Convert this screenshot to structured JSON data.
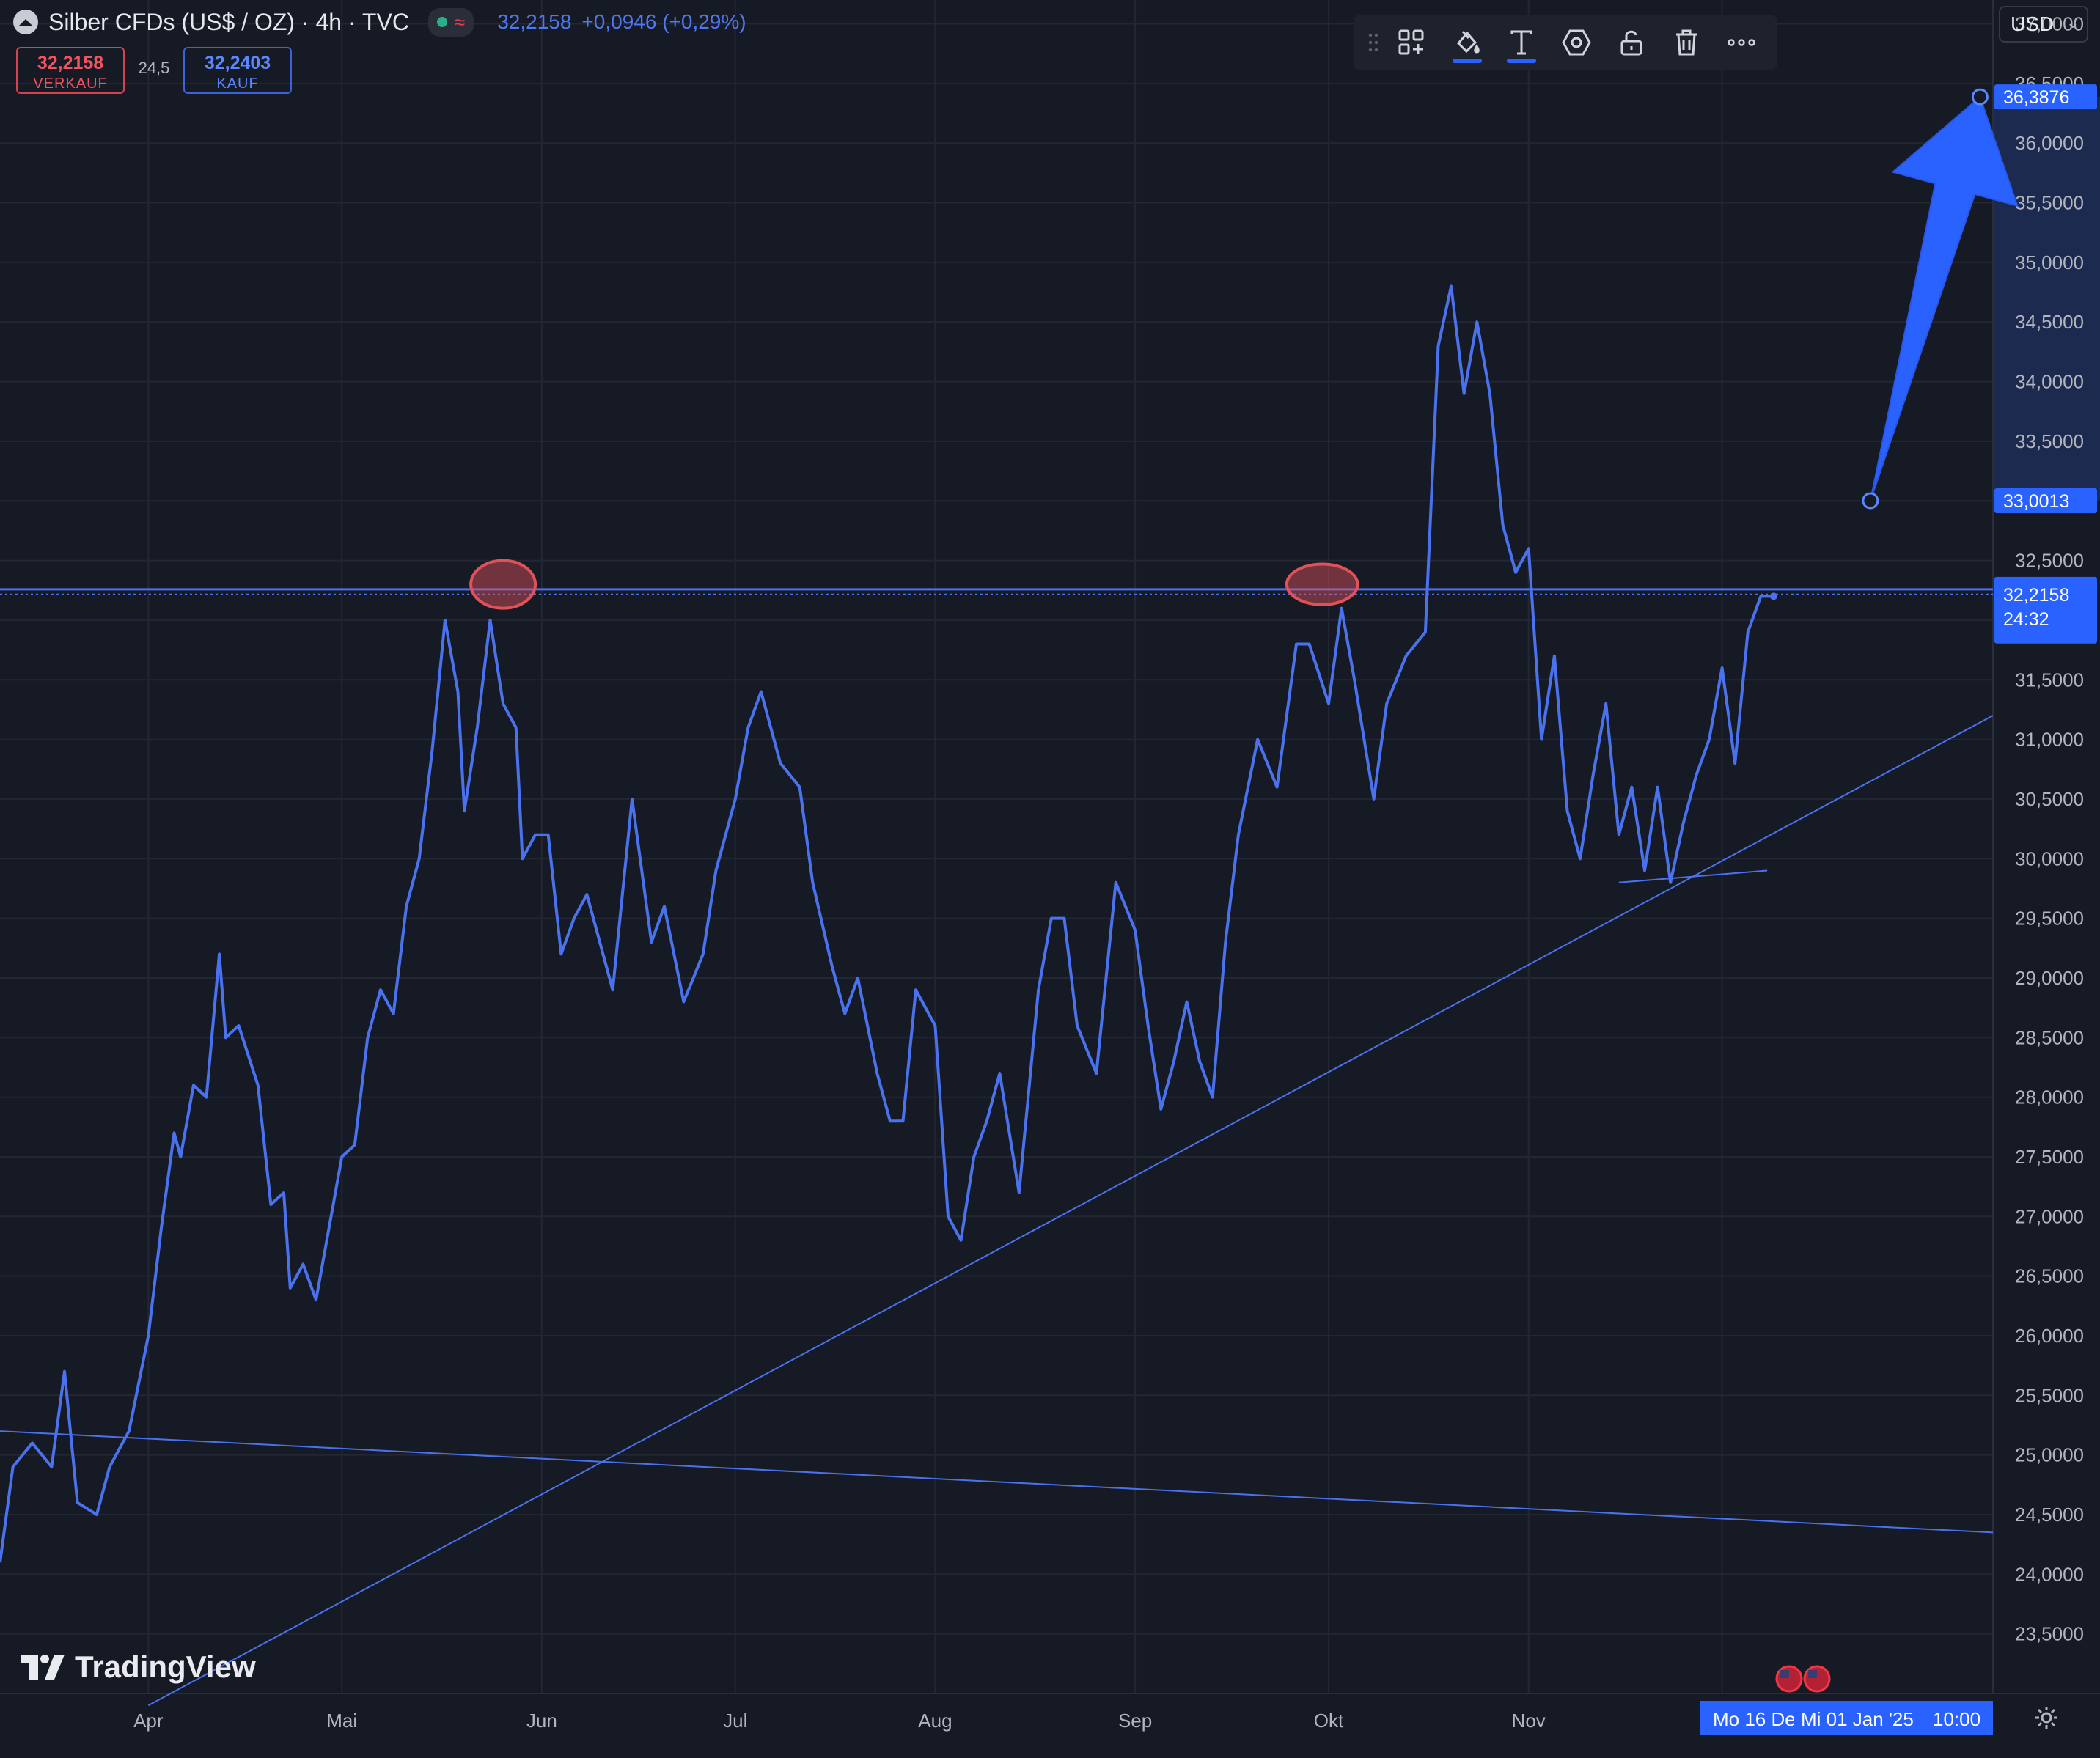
{
  "header": {
    "title": "Silber CFDs (US$ / OZ) · 4h · TVC",
    "status_icon": "wave-icon",
    "last_price": "32,2158",
    "change": "+0,0946 (+0,29%)"
  },
  "quote": {
    "sell_price": "32,2158",
    "sell_label": "VERKAUF",
    "spread": "24,5",
    "buy_price": "32,2403",
    "buy_label": "KAUF"
  },
  "toolbar": {
    "items": [
      "drag-handle-icon",
      "add-object-icon",
      "fill-paint-icon",
      "text-icon",
      "settings-hexagon-icon",
      "unlock-icon",
      "trash-icon",
      "more-icon"
    ]
  },
  "currency": {
    "selected": "USD"
  },
  "watermark": {
    "brand": "TradingView"
  },
  "footer": {
    "range_start": "Mo 16 Dez",
    "range_end": "Mi 01 Jan '25",
    "range_time": "10:00"
  },
  "colors": {
    "background": "#161a25",
    "line": "#4a72ee",
    "marker_fill": "#2962ff",
    "highlight": "#e0525a",
    "grid": "#232733"
  },
  "chart_data": {
    "type": "line",
    "title": "",
    "xlabel": "",
    "ylabel": "",
    "grid": true,
    "ylim": [
      23.0,
      37.2
    ],
    "x_range": [
      "2024-03-09",
      "2025-01-12"
    ],
    "x_ticks": [
      {
        "label": "Apr",
        "date": "2024-04-01"
      },
      {
        "label": "Mai",
        "date": "2024-05-01"
      },
      {
        "label": "Jun",
        "date": "2024-06-01"
      },
      {
        "label": "Jul",
        "date": "2024-07-01"
      },
      {
        "label": "Aug",
        "date": "2024-08-01"
      },
      {
        "label": "Sep",
        "date": "2024-09-01"
      },
      {
        "label": "Okt",
        "date": "2024-10-01"
      },
      {
        "label": "Nov",
        "date": "2024-11-01"
      },
      {
        "label": "D",
        "date": "2024-12-01"
      }
    ],
    "y_ticks": [
      "37,0000",
      "36,5000",
      "36,0000",
      "35,5000",
      "35,0000",
      "34,5000",
      "34,0000",
      "33,5000",
      "33,0000",
      "32,5000",
      "32,0000",
      "31,5000",
      "31,0000",
      "30,5000",
      "30,0000",
      "29,5000",
      "29,0000",
      "28,5000",
      "28,0000",
      "27,5000",
      "27,0000",
      "26,5000",
      "26,0000",
      "25,5000",
      "25,0000",
      "24,5000",
      "24,0000",
      "23,5000"
    ],
    "y_ticks_values": [
      37.0,
      36.5,
      36.0,
      35.5,
      35.0,
      34.5,
      34.0,
      33.5,
      33.0,
      32.5,
      32.0,
      31.5,
      31.0,
      30.5,
      30.0,
      29.5,
      29.0,
      28.5,
      28.0,
      27.5,
      27.0,
      26.5,
      26.0,
      25.5,
      25.0,
      24.5,
      24.0,
      23.5
    ],
    "series": [
      {
        "x": [
          "2024-03-09",
          "2024-03-11",
          "2024-03-14",
          "2024-03-17",
          "2024-03-19",
          "2024-03-21",
          "2024-03-24",
          "2024-03-26",
          "2024-03-29",
          "2024-04-01",
          "2024-04-03",
          "2024-04-05",
          "2024-04-06",
          "2024-04-08",
          "2024-04-10",
          "2024-04-12",
          "2024-04-13",
          "2024-04-15",
          "2024-04-18",
          "2024-04-20",
          "2024-04-22",
          "2024-04-23",
          "2024-04-25",
          "2024-04-27",
          "2024-04-29",
          "2024-05-01",
          "2024-05-03",
          "2024-05-05",
          "2024-05-07",
          "2024-05-09",
          "2024-05-11",
          "2024-05-13",
          "2024-05-15",
          "2024-05-17",
          "2024-05-19",
          "2024-05-20",
          "2024-05-22",
          "2024-05-24",
          "2024-05-26",
          "2024-05-28",
          "2024-05-29",
          "2024-05-31",
          "2024-06-02",
          "2024-06-04",
          "2024-06-06",
          "2024-06-08",
          "2024-06-10",
          "2024-06-12",
          "2024-06-15",
          "2024-06-18",
          "2024-06-20",
          "2024-06-23",
          "2024-06-26",
          "2024-06-28",
          "2024-07-01",
          "2024-07-03",
          "2024-07-05",
          "2024-07-08",
          "2024-07-11",
          "2024-07-13",
          "2024-07-16",
          "2024-07-18",
          "2024-07-20",
          "2024-07-23",
          "2024-07-25",
          "2024-07-27",
          "2024-07-29",
          "2024-08-01",
          "2024-08-03",
          "2024-08-05",
          "2024-08-07",
          "2024-08-09",
          "2024-08-11",
          "2024-08-14",
          "2024-08-17",
          "2024-08-19",
          "2024-08-21",
          "2024-08-23",
          "2024-08-26",
          "2024-08-29",
          "2024-09-01",
          "2024-09-03",
          "2024-09-05",
          "2024-09-07",
          "2024-09-09",
          "2024-09-11",
          "2024-09-13",
          "2024-09-15",
          "2024-09-17",
          "2024-09-20",
          "2024-09-23",
          "2024-09-26",
          "2024-09-28",
          "2024-10-01",
          "2024-10-03",
          "2024-10-05",
          "2024-10-08",
          "2024-10-10",
          "2024-10-13",
          "2024-10-16",
          "2024-10-18",
          "2024-10-20",
          "2024-10-22",
          "2024-10-24",
          "2024-10-26",
          "2024-10-28",
          "2024-10-30",
          "2024-11-01",
          "2024-11-03",
          "2024-11-05",
          "2024-11-07",
          "2024-11-09",
          "2024-11-11",
          "2024-11-13",
          "2024-11-15",
          "2024-11-17",
          "2024-11-19",
          "2024-11-21",
          "2024-11-23",
          "2024-11-25",
          "2024-11-27",
          "2024-11-29",
          "2024-12-01",
          "2024-12-03",
          "2024-12-05",
          "2024-12-07",
          "2024-12-09"
        ],
        "values": [
          24.1,
          24.9,
          25.1,
          24.9,
          25.7,
          24.6,
          24.5,
          24.9,
          25.2,
          26.0,
          26.9,
          27.7,
          27.5,
          28.1,
          28.0,
          29.2,
          28.5,
          28.6,
          28.1,
          27.1,
          27.2,
          26.4,
          26.6,
          26.3,
          26.9,
          27.5,
          27.6,
          28.5,
          28.9,
          28.7,
          29.6,
          30.0,
          30.9,
          32.0,
          31.4,
          30.4,
          31.1,
          32.0,
          31.3,
          31.1,
          30.0,
          30.2,
          30.2,
          29.2,
          29.5,
          29.7,
          29.3,
          28.9,
          30.5,
          29.3,
          29.6,
          28.8,
          29.2,
          29.9,
          30.5,
          31.1,
          31.4,
          30.8,
          30.6,
          29.8,
          29.1,
          28.7,
          29.0,
          28.2,
          27.8,
          27.8,
          28.9,
          28.6,
          27.0,
          26.8,
          27.5,
          27.8,
          28.2,
          27.2,
          28.9,
          29.5,
          29.5,
          28.6,
          28.2,
          29.8,
          29.4,
          28.6,
          27.9,
          28.3,
          28.8,
          28.3,
          28.0,
          29.3,
          30.2,
          31.0,
          30.6,
          31.8,
          31.8,
          31.3,
          32.1,
          31.5,
          30.5,
          31.3,
          31.7,
          31.9,
          34.3,
          34.8,
          33.9,
          34.5,
          33.9,
          32.8,
          32.4,
          32.6,
          31.0,
          31.7,
          30.4,
          30.0,
          30.7,
          31.3,
          30.2,
          30.6,
          29.9,
          30.6,
          29.8,
          30.3,
          30.7,
          31.0,
          31.6,
          30.8,
          31.9,
          32.2,
          32.2
        ]
      }
    ],
    "horizontal_line": 32.2588,
    "annotations": [
      {
        "type": "trendline",
        "from": {
          "date": "2024-03-09",
          "value": 25.2
        },
        "to": {
          "date": "2025-01-12",
          "value": 24.35
        }
      },
      {
        "type": "trendline",
        "from": {
          "date": "2024-04-01",
          "value": 22.9
        },
        "to": {
          "date": "2025-01-12",
          "value": 31.2
        }
      },
      {
        "type": "trendline",
        "from": {
          "date": "2024-11-15",
          "value": 29.8
        },
        "to": {
          "date": "2024-12-08",
          "value": 29.9
        }
      },
      {
        "type": "ellipse",
        "center": {
          "date": "2024-05-26",
          "value": 32.3
        },
        "rx_days": 5,
        "ry_value": 0.2
      },
      {
        "type": "ellipse",
        "center": {
          "date": "2024-09-30",
          "value": 32.3
        },
        "rx_days": 5.5,
        "ry_value": 0.17
      },
      {
        "type": "arrow",
        "from": {
          "date": "2024-12-24",
          "value": 33.0013
        },
        "to": {
          "date": "2025-01-10",
          "value": 36.3876
        }
      }
    ],
    "price_labels": [
      {
        "value": 36.3876,
        "text": "36,3876"
      },
      {
        "value": 33.0013,
        "text": "33,0013"
      },
      {
        "value": 32.2588,
        "text": "32,2588"
      },
      {
        "value": 32.2158,
        "text": "32,2158",
        "sub": "24:32"
      }
    ]
  }
}
